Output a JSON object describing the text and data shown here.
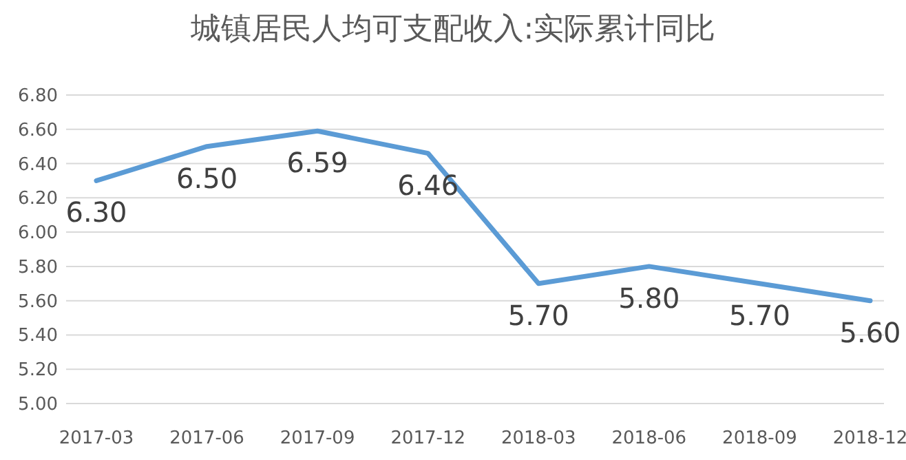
{
  "chart_data": {
    "type": "line",
    "title": "城镇居民人均可支配收入:实际累计同比",
    "categories": [
      "2017-03",
      "2017-06",
      "2017-09",
      "2017-12",
      "2018-03",
      "2018-06",
      "2018-09",
      "2018-12"
    ],
    "values": [
      6.3,
      6.5,
      6.59,
      6.46,
      5.7,
      5.8,
      5.7,
      5.6
    ],
    "value_labels": [
      "6.30",
      "6.50",
      "6.59",
      "6.46",
      "5.70",
      "5.80",
      "5.70",
      "5.60"
    ],
    "color": "#5b9bd5",
    "ylim": [
      5.0,
      6.8
    ],
    "yticks": [
      {
        "value": 5.0,
        "label": "5.00"
      },
      {
        "value": 5.2,
        "label": "5.20"
      },
      {
        "value": 5.4,
        "label": "5.40"
      },
      {
        "value": 5.6,
        "label": "5.60"
      },
      {
        "value": 5.8,
        "label": "5.80"
      },
      {
        "value": 6.0,
        "label": "6.00"
      },
      {
        "value": 6.2,
        "label": "6.20"
      },
      {
        "value": 6.4,
        "label": "6.40"
      },
      {
        "value": 6.6,
        "label": "6.60"
      },
      {
        "value": 6.8,
        "label": "6.80"
      }
    ],
    "grid": "y"
  }
}
